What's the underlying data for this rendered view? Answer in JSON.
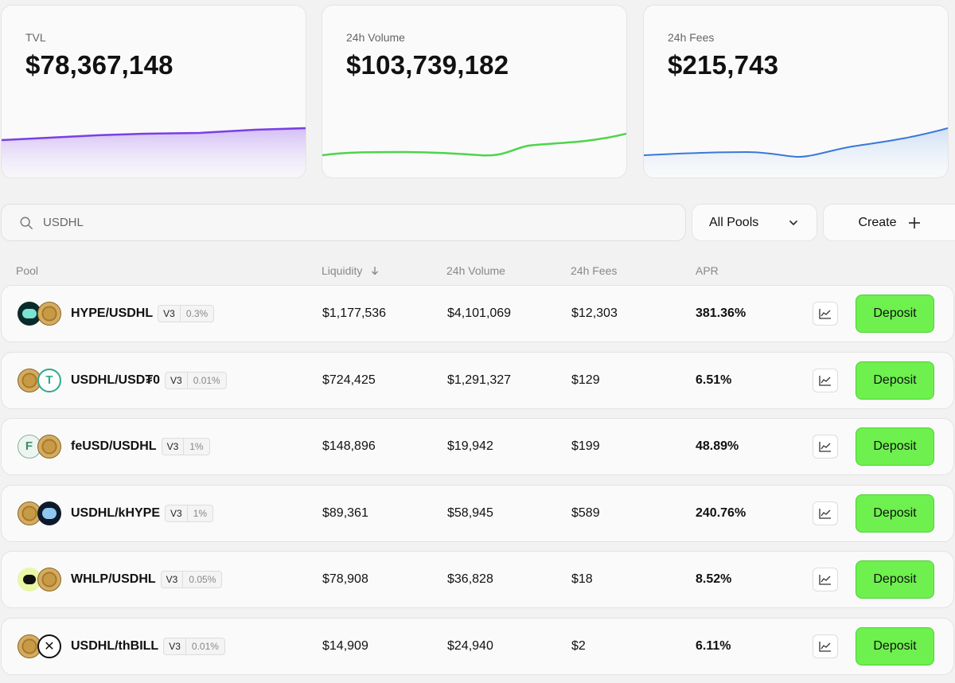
{
  "stats": {
    "tvl": {
      "label": "TVL",
      "value": "$78,367,148",
      "color": "#7b3fe4"
    },
    "volume": {
      "label": "24h Volume",
      "value": "$103,739,182",
      "color": "#4cd54b"
    },
    "fees": {
      "label": "24h Fees",
      "value": "$215,743",
      "color": "#3a78d8"
    }
  },
  "search": {
    "value": "USDHL"
  },
  "filter": {
    "label": "All Pools"
  },
  "create": {
    "label": "Create"
  },
  "table": {
    "headers": {
      "pool": "Pool",
      "liquidity": "Liquidity",
      "volume": "24h Volume",
      "fees": "24h Fees",
      "apr": "APR"
    },
    "rows": [
      {
        "pair": "HYPE/USDHL",
        "version": "V3",
        "fee": "0.3%",
        "liquidity": "$1,177,536",
        "volume": "$4,101,069",
        "fees": "$12,303",
        "apr": "381.36%",
        "deposit": "Deposit",
        "tokens": [
          "hype",
          "usdhl"
        ]
      },
      {
        "pair": "USDHL/USD₮0",
        "version": "V3",
        "fee": "0.01%",
        "liquidity": "$724,425",
        "volume": "$1,291,327",
        "fees": "$129",
        "apr": "6.51%",
        "deposit": "Deposit",
        "tokens": [
          "usdhl",
          "usdt"
        ]
      },
      {
        "pair": "feUSD/USDHL",
        "version": "V3",
        "fee": "1%",
        "liquidity": "$148,896",
        "volume": "$19,942",
        "fees": "$199",
        "apr": "48.89%",
        "deposit": "Deposit",
        "tokens": [
          "feusd",
          "usdhl"
        ]
      },
      {
        "pair": "USDHL/kHYPE",
        "version": "V3",
        "fee": "1%",
        "liquidity": "$89,361",
        "volume": "$58,945",
        "fees": "$589",
        "apr": "240.76%",
        "deposit": "Deposit",
        "tokens": [
          "usdhl",
          "khype"
        ]
      },
      {
        "pair": "WHLP/USDHL",
        "version": "V3",
        "fee": "0.05%",
        "liquidity": "$78,908",
        "volume": "$36,828",
        "fees": "$18",
        "apr": "8.52%",
        "deposit": "Deposit",
        "tokens": [
          "whlp",
          "usdhl"
        ]
      },
      {
        "pair": "USDHL/thBILL",
        "version": "V3",
        "fee": "0.01%",
        "liquidity": "$14,909",
        "volume": "$24,940",
        "fees": "$2",
        "apr": "6.11%",
        "deposit": "Deposit",
        "tokens": [
          "usdhl",
          "thbill"
        ]
      }
    ]
  }
}
